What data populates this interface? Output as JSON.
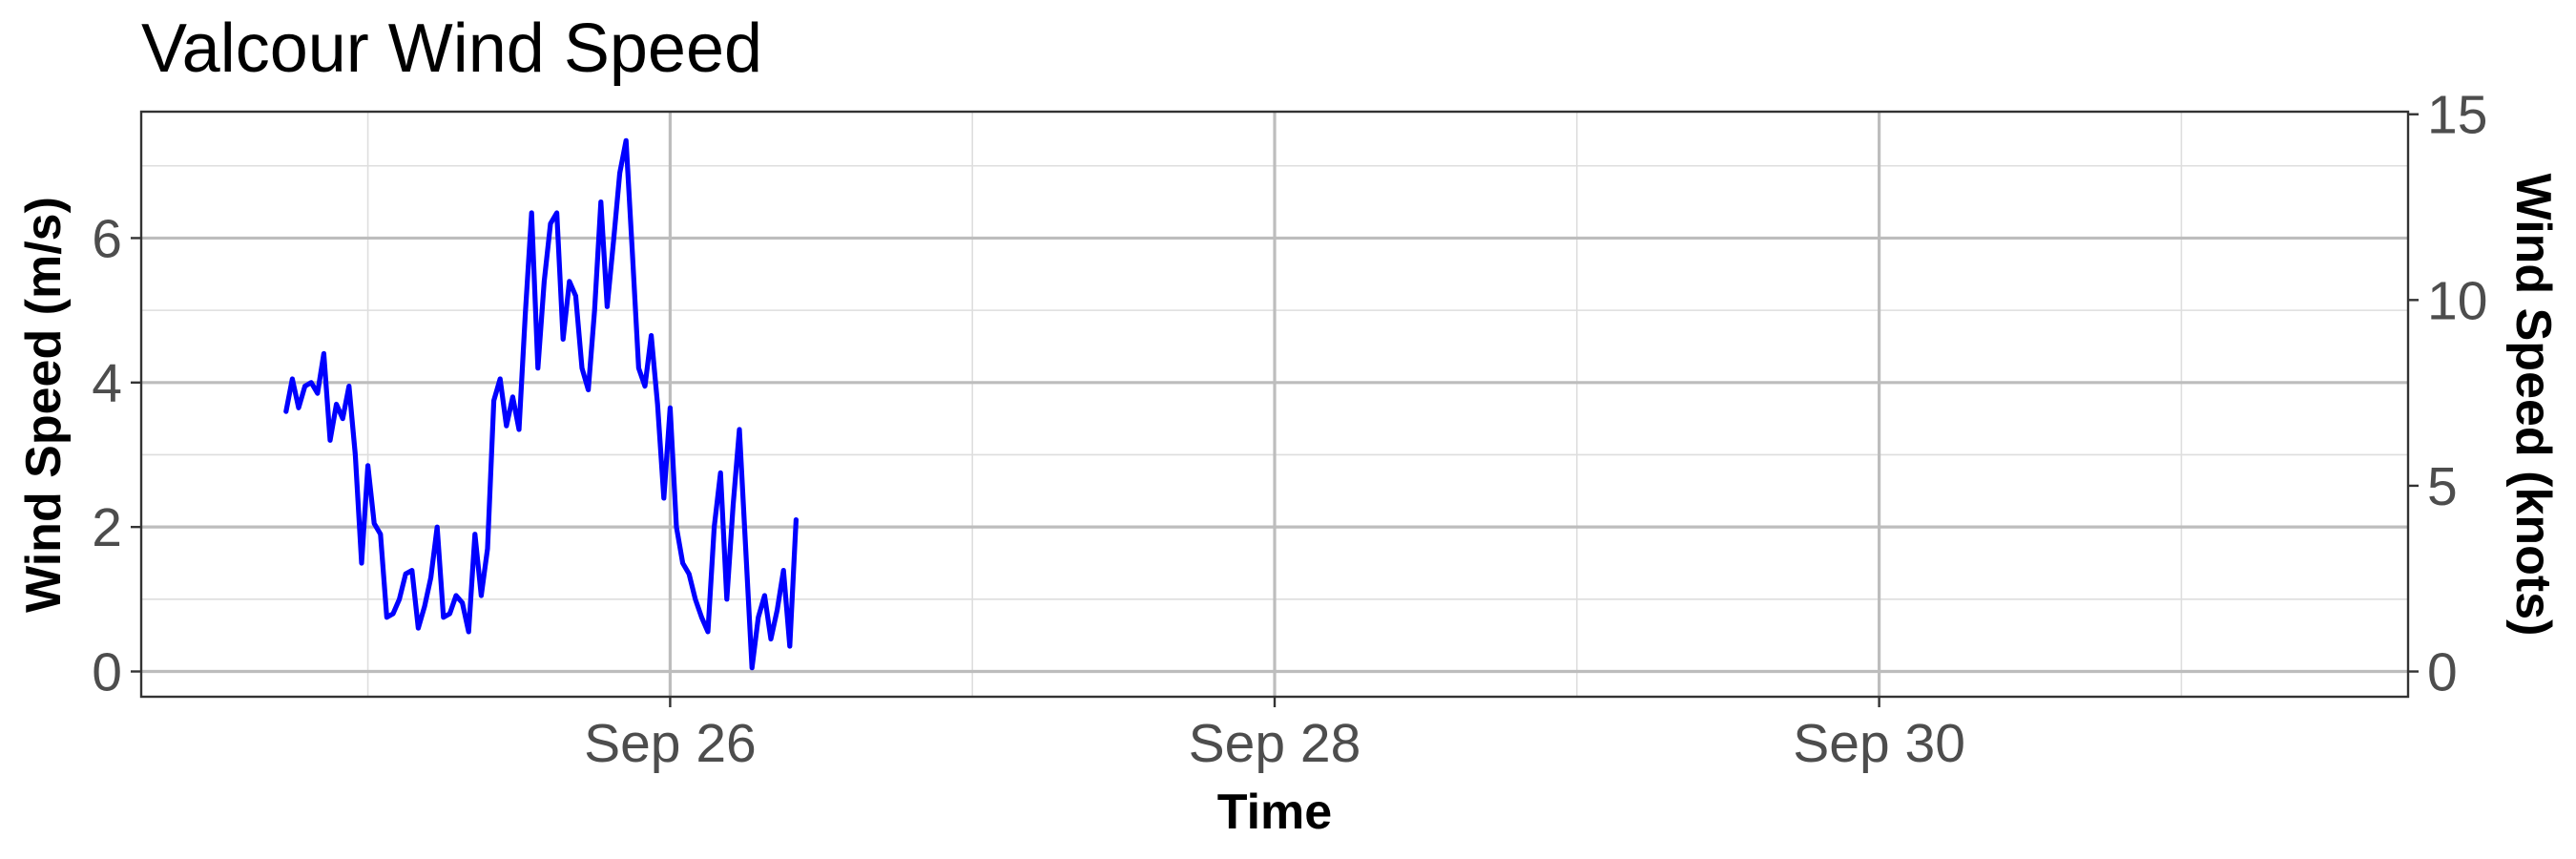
{
  "chart_data": {
    "type": "line",
    "title": "Valcour Wind Speed",
    "xlabel": "Time",
    "ylabel": "Wind Speed (m/s)",
    "ylabel_right": "Wind Speed (knots)",
    "xlim": [
      "2024-09-24T06:00",
      "2024-10-01T18:00"
    ],
    "ylim": [
      -0.35,
      7.75
    ],
    "ylim_right": [
      -0.68,
      15.07
    ],
    "x_ticks": [
      {
        "value": "2024-09-26T00:00",
        "label": "Sep 26"
      },
      {
        "value": "2024-09-28T00:00",
        "label": "Sep 28"
      },
      {
        "value": "2024-09-30T00:00",
        "label": "Sep 30"
      }
    ],
    "y_ticks": [
      0,
      2,
      4,
      6
    ],
    "y_ticks_right": [
      0,
      5,
      10,
      15
    ],
    "grid": true,
    "series_color": "#0000ff",
    "series": [
      {
        "x": [
          "2024-09-24T17:30",
          "2024-09-24T18:00",
          "2024-09-24T18:30",
          "2024-09-24T19:00",
          "2024-09-24T19:30",
          "2024-09-24T20:00",
          "2024-09-24T20:30",
          "2024-09-24T21:00",
          "2024-09-24T21:30",
          "2024-09-24T22:00",
          "2024-09-24T22:30",
          "2024-09-24T23:00",
          "2024-09-24T23:30",
          "2024-09-25T00:00",
          "2024-09-25T00:30",
          "2024-09-25T01:00",
          "2024-09-25T01:30",
          "2024-09-25T02:00",
          "2024-09-25T02:30",
          "2024-09-25T03:00",
          "2024-09-25T03:30",
          "2024-09-25T04:00",
          "2024-09-25T04:30",
          "2024-09-25T05:00",
          "2024-09-25T05:30",
          "2024-09-25T06:00",
          "2024-09-25T06:30",
          "2024-09-25T07:00",
          "2024-09-25T07:30",
          "2024-09-25T08:00",
          "2024-09-25T08:30",
          "2024-09-25T09:00",
          "2024-09-25T09:30",
          "2024-09-25T10:00",
          "2024-09-25T10:30",
          "2024-09-25T11:00",
          "2024-09-25T11:30",
          "2024-09-25T12:00",
          "2024-09-25T12:30",
          "2024-09-25T13:00",
          "2024-09-25T13:30",
          "2024-09-25T14:00",
          "2024-09-25T14:30",
          "2024-09-25T15:00",
          "2024-09-25T15:30",
          "2024-09-25T16:00",
          "2024-09-25T16:30",
          "2024-09-25T17:00",
          "2024-09-25T17:30",
          "2024-09-25T18:00",
          "2024-09-25T18:30",
          "2024-09-25T19:00",
          "2024-09-25T19:30",
          "2024-09-25T20:00",
          "2024-09-25T20:30",
          "2024-09-25T21:00",
          "2024-09-25T21:30",
          "2024-09-25T22:00",
          "2024-09-25T22:30",
          "2024-09-25T23:00",
          "2024-09-25T23:30",
          "2024-09-26T00:00",
          "2024-09-26T00:30",
          "2024-09-26T01:00",
          "2024-09-26T01:30",
          "2024-09-26T02:00",
          "2024-09-26T02:30",
          "2024-09-26T03:00",
          "2024-09-26T03:30",
          "2024-09-26T04:00",
          "2024-09-26T04:30",
          "2024-09-26T05:00",
          "2024-09-26T05:30",
          "2024-09-26T06:00",
          "2024-09-26T06:30",
          "2024-09-26T07:00",
          "2024-09-26T07:30",
          "2024-09-26T08:00",
          "2024-09-26T08:30",
          "2024-09-26T09:00",
          "2024-09-26T09:30",
          "2024-09-26T10:00"
        ],
        "values": [
          3.6,
          4.05,
          3.65,
          3.95,
          4.0,
          3.85,
          4.4,
          3.2,
          3.7,
          3.5,
          3.95,
          3.0,
          1.5,
          2.85,
          2.05,
          1.9,
          0.75,
          0.8,
          1.0,
          1.35,
          1.4,
          0.6,
          0.9,
          1.3,
          2.0,
          0.75,
          0.8,
          1.05,
          0.95,
          0.55,
          1.9,
          1.05,
          1.7,
          3.75,
          4.05,
          3.4,
          3.8,
          3.35,
          4.95,
          6.35,
          4.2,
          5.4,
          6.2,
          6.35,
          4.6,
          5.4,
          5.2,
          4.2,
          3.9,
          5.0,
          6.5,
          5.05,
          5.95,
          6.9,
          7.35,
          5.8,
          4.2,
          3.95,
          4.65,
          3.7,
          2.4,
          3.65,
          2.0,
          1.5,
          1.35,
          1.0,
          0.75,
          0.55,
          2.0,
          2.75,
          1.0,
          2.3,
          3.35,
          1.7,
          0.05,
          0.75,
          1.05,
          0.45,
          0.85,
          1.4,
          0.35,
          2.1
        ]
      }
    ]
  }
}
